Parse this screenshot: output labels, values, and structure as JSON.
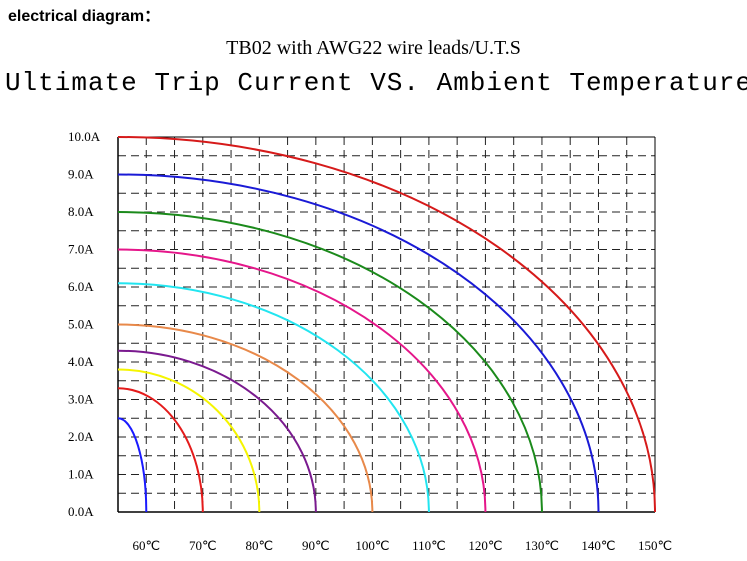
{
  "header": {
    "label": "electrical diagram："
  },
  "chart_data": {
    "type": "line",
    "title": "TB02 with AWG22 wire leads/U.T.S",
    "subtitle": "Ultimate Trip Current VS. Ambient Temperature",
    "xlabel": "",
    "ylabel": "",
    "x_ticks": [
      "60℃",
      "70℃",
      "80℃",
      "90℃",
      "100℃",
      "110℃",
      "120℃",
      "130℃",
      "140℃",
      "150℃"
    ],
    "y_ticks": [
      "0.0A",
      "1.0A",
      "2.0A",
      "3.0A",
      "4.0A",
      "5.0A",
      "6.0A",
      "7.0A",
      "8.0A",
      "9.0A",
      "10.0A"
    ],
    "xlim": [
      55,
      150
    ],
    "ylim": [
      0,
      10
    ],
    "grid": true,
    "curve_shape": "quarter-ellipse from (55, start current) to (zero-current temperature, 0)",
    "series": [
      {
        "start_current": 2.5,
        "zero_at_temp": 60,
        "color": "#1a1aff"
      },
      {
        "start_current": 3.3,
        "zero_at_temp": 70,
        "color": "#e41b1b"
      },
      {
        "start_current": 3.8,
        "zero_at_temp": 80,
        "color": "#f5f500"
      },
      {
        "start_current": 4.3,
        "zero_at_temp": 90,
        "color": "#7a1a8f"
      },
      {
        "start_current": 5.0,
        "zero_at_temp": 100,
        "color": "#e8894a"
      },
      {
        "start_current": 6.1,
        "zero_at_temp": 110,
        "color": "#22e5f0"
      },
      {
        "start_current": 7.0,
        "zero_at_temp": 120,
        "color": "#e5168a"
      },
      {
        "start_current": 8.0,
        "zero_at_temp": 130,
        "color": "#1b8a1b"
      },
      {
        "start_current": 9.0,
        "zero_at_temp": 140,
        "color": "#1a1ad6"
      },
      {
        "start_current": 10.0,
        "zero_at_temp": 150,
        "color": "#d61a1a"
      }
    ]
  }
}
